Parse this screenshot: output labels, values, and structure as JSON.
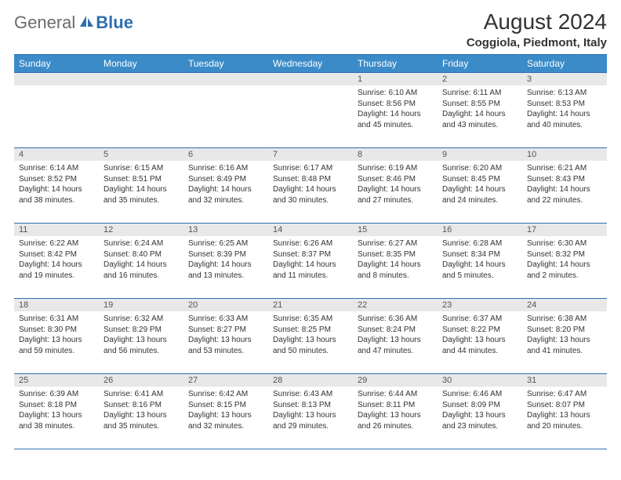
{
  "brand": {
    "text_general": "General",
    "text_blue": "Blue",
    "icon_fill": "#2f6fb0"
  },
  "header": {
    "month_title": "August 2024",
    "location": "Coggiola, Piedmont, Italy"
  },
  "colors": {
    "header_bg": "#3b8bc8",
    "header_text": "#ffffff",
    "border": "#2f6fb0",
    "daynum_bg": "#e8e8e8",
    "daynum_text": "#555555",
    "body_text": "#333333",
    "page_bg": "#ffffff"
  },
  "weekdays": [
    "Sunday",
    "Monday",
    "Tuesday",
    "Wednesday",
    "Thursday",
    "Friday",
    "Saturday"
  ],
  "weeks": [
    [
      {
        "n": "",
        "sunrise": "",
        "sunset": "",
        "daylight": ""
      },
      {
        "n": "",
        "sunrise": "",
        "sunset": "",
        "daylight": ""
      },
      {
        "n": "",
        "sunrise": "",
        "sunset": "",
        "daylight": ""
      },
      {
        "n": "",
        "sunrise": "",
        "sunset": "",
        "daylight": ""
      },
      {
        "n": "1",
        "sunrise": "Sunrise: 6:10 AM",
        "sunset": "Sunset: 8:56 PM",
        "daylight": "Daylight: 14 hours and 45 minutes."
      },
      {
        "n": "2",
        "sunrise": "Sunrise: 6:11 AM",
        "sunset": "Sunset: 8:55 PM",
        "daylight": "Daylight: 14 hours and 43 minutes."
      },
      {
        "n": "3",
        "sunrise": "Sunrise: 6:13 AM",
        "sunset": "Sunset: 8:53 PM",
        "daylight": "Daylight: 14 hours and 40 minutes."
      }
    ],
    [
      {
        "n": "4",
        "sunrise": "Sunrise: 6:14 AM",
        "sunset": "Sunset: 8:52 PM",
        "daylight": "Daylight: 14 hours and 38 minutes."
      },
      {
        "n": "5",
        "sunrise": "Sunrise: 6:15 AM",
        "sunset": "Sunset: 8:51 PM",
        "daylight": "Daylight: 14 hours and 35 minutes."
      },
      {
        "n": "6",
        "sunrise": "Sunrise: 6:16 AM",
        "sunset": "Sunset: 8:49 PM",
        "daylight": "Daylight: 14 hours and 32 minutes."
      },
      {
        "n": "7",
        "sunrise": "Sunrise: 6:17 AM",
        "sunset": "Sunset: 8:48 PM",
        "daylight": "Daylight: 14 hours and 30 minutes."
      },
      {
        "n": "8",
        "sunrise": "Sunrise: 6:19 AM",
        "sunset": "Sunset: 8:46 PM",
        "daylight": "Daylight: 14 hours and 27 minutes."
      },
      {
        "n": "9",
        "sunrise": "Sunrise: 6:20 AM",
        "sunset": "Sunset: 8:45 PM",
        "daylight": "Daylight: 14 hours and 24 minutes."
      },
      {
        "n": "10",
        "sunrise": "Sunrise: 6:21 AM",
        "sunset": "Sunset: 8:43 PM",
        "daylight": "Daylight: 14 hours and 22 minutes."
      }
    ],
    [
      {
        "n": "11",
        "sunrise": "Sunrise: 6:22 AM",
        "sunset": "Sunset: 8:42 PM",
        "daylight": "Daylight: 14 hours and 19 minutes."
      },
      {
        "n": "12",
        "sunrise": "Sunrise: 6:24 AM",
        "sunset": "Sunset: 8:40 PM",
        "daylight": "Daylight: 14 hours and 16 minutes."
      },
      {
        "n": "13",
        "sunrise": "Sunrise: 6:25 AM",
        "sunset": "Sunset: 8:39 PM",
        "daylight": "Daylight: 14 hours and 13 minutes."
      },
      {
        "n": "14",
        "sunrise": "Sunrise: 6:26 AM",
        "sunset": "Sunset: 8:37 PM",
        "daylight": "Daylight: 14 hours and 11 minutes."
      },
      {
        "n": "15",
        "sunrise": "Sunrise: 6:27 AM",
        "sunset": "Sunset: 8:35 PM",
        "daylight": "Daylight: 14 hours and 8 minutes."
      },
      {
        "n": "16",
        "sunrise": "Sunrise: 6:28 AM",
        "sunset": "Sunset: 8:34 PM",
        "daylight": "Daylight: 14 hours and 5 minutes."
      },
      {
        "n": "17",
        "sunrise": "Sunrise: 6:30 AM",
        "sunset": "Sunset: 8:32 PM",
        "daylight": "Daylight: 14 hours and 2 minutes."
      }
    ],
    [
      {
        "n": "18",
        "sunrise": "Sunrise: 6:31 AM",
        "sunset": "Sunset: 8:30 PM",
        "daylight": "Daylight: 13 hours and 59 minutes."
      },
      {
        "n": "19",
        "sunrise": "Sunrise: 6:32 AM",
        "sunset": "Sunset: 8:29 PM",
        "daylight": "Daylight: 13 hours and 56 minutes."
      },
      {
        "n": "20",
        "sunrise": "Sunrise: 6:33 AM",
        "sunset": "Sunset: 8:27 PM",
        "daylight": "Daylight: 13 hours and 53 minutes."
      },
      {
        "n": "21",
        "sunrise": "Sunrise: 6:35 AM",
        "sunset": "Sunset: 8:25 PM",
        "daylight": "Daylight: 13 hours and 50 minutes."
      },
      {
        "n": "22",
        "sunrise": "Sunrise: 6:36 AM",
        "sunset": "Sunset: 8:24 PM",
        "daylight": "Daylight: 13 hours and 47 minutes."
      },
      {
        "n": "23",
        "sunrise": "Sunrise: 6:37 AM",
        "sunset": "Sunset: 8:22 PM",
        "daylight": "Daylight: 13 hours and 44 minutes."
      },
      {
        "n": "24",
        "sunrise": "Sunrise: 6:38 AM",
        "sunset": "Sunset: 8:20 PM",
        "daylight": "Daylight: 13 hours and 41 minutes."
      }
    ],
    [
      {
        "n": "25",
        "sunrise": "Sunrise: 6:39 AM",
        "sunset": "Sunset: 8:18 PM",
        "daylight": "Daylight: 13 hours and 38 minutes."
      },
      {
        "n": "26",
        "sunrise": "Sunrise: 6:41 AM",
        "sunset": "Sunset: 8:16 PM",
        "daylight": "Daylight: 13 hours and 35 minutes."
      },
      {
        "n": "27",
        "sunrise": "Sunrise: 6:42 AM",
        "sunset": "Sunset: 8:15 PM",
        "daylight": "Daylight: 13 hours and 32 minutes."
      },
      {
        "n": "28",
        "sunrise": "Sunrise: 6:43 AM",
        "sunset": "Sunset: 8:13 PM",
        "daylight": "Daylight: 13 hours and 29 minutes."
      },
      {
        "n": "29",
        "sunrise": "Sunrise: 6:44 AM",
        "sunset": "Sunset: 8:11 PM",
        "daylight": "Daylight: 13 hours and 26 minutes."
      },
      {
        "n": "30",
        "sunrise": "Sunrise: 6:46 AM",
        "sunset": "Sunset: 8:09 PM",
        "daylight": "Daylight: 13 hours and 23 minutes."
      },
      {
        "n": "31",
        "sunrise": "Sunrise: 6:47 AM",
        "sunset": "Sunset: 8:07 PM",
        "daylight": "Daylight: 13 hours and 20 minutes."
      }
    ]
  ]
}
